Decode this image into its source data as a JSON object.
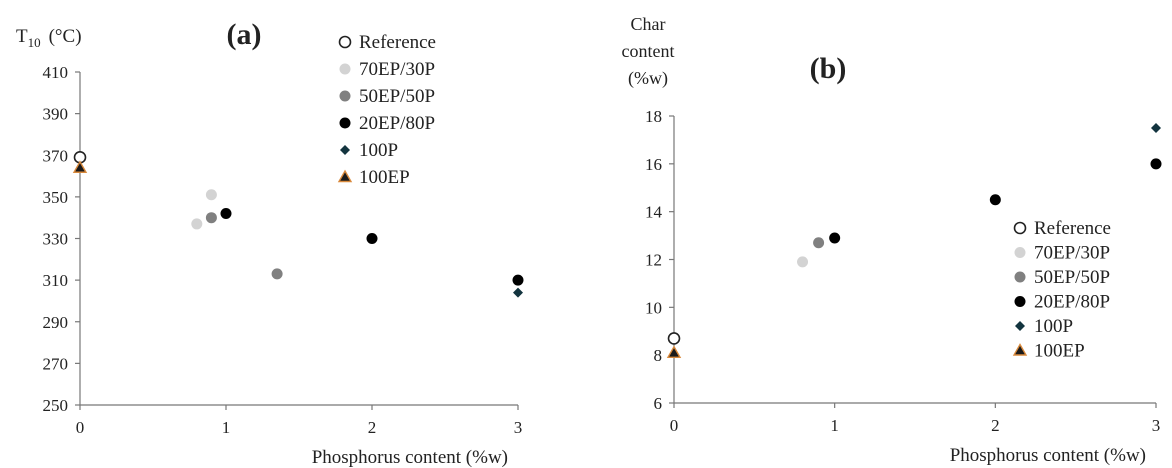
{
  "chart_data": [
    {
      "type": "scatter",
      "panel_label": "(a)",
      "ylabel_main": "T",
      "ylabel_sub": "10",
      "ylabel_unit": "(°C)",
      "xlabel": "Phosphorus content (%w)",
      "xlim": [
        0,
        3
      ],
      "ylim": [
        250,
        410
      ],
      "xticks": [
        0,
        1,
        2,
        3
      ],
      "yticks": [
        250,
        270,
        290,
        310,
        330,
        350,
        370,
        390,
        410
      ],
      "legend_position": "top-right",
      "series": [
        {
          "name": "Reference",
          "marker": "circle-open",
          "color": "#ffffff",
          "stroke": "#222222",
          "points": [
            [
              0,
              369
            ]
          ]
        },
        {
          "name": "70EP/30P",
          "marker": "circle",
          "color": "#d3d3d3",
          "points": [
            [
              0.8,
              337
            ],
            [
              0.9,
              351
            ]
          ]
        },
        {
          "name": "50EP/50P",
          "marker": "circle",
          "color": "#808080",
          "points": [
            [
              0.9,
              340
            ],
            [
              1.35,
              313
            ]
          ]
        },
        {
          "name": "20EP/80P",
          "marker": "circle",
          "color": "#000000",
          "points": [
            [
              1.0,
              342
            ],
            [
              2.0,
              330
            ],
            [
              3.0,
              310
            ]
          ]
        },
        {
          "name": "100P",
          "marker": "diamond",
          "color": "#13343f",
          "points": [
            [
              3.0,
              304
            ]
          ]
        },
        {
          "name": "100EP",
          "marker": "triangle",
          "color": "#1a1a1a",
          "stroke": "#d98a3d",
          "points": [
            [
              0,
              364
            ]
          ]
        }
      ]
    },
    {
      "type": "scatter",
      "panel_label": "(b)",
      "ylabel_lines": [
        "Char",
        "content",
        "(%w)"
      ],
      "xlabel": "Phosphorus content (%w)",
      "xlim": [
        0,
        3
      ],
      "ylim": [
        6,
        18
      ],
      "xticks": [
        0,
        1,
        2,
        3
      ],
      "yticks": [
        6,
        8,
        10,
        12,
        14,
        16,
        18
      ],
      "legend_position": "right",
      "series": [
        {
          "name": "Reference",
          "marker": "circle-open",
          "color": "#ffffff",
          "stroke": "#222222",
          "points": [
            [
              0,
              8.7
            ]
          ]
        },
        {
          "name": "70EP/30P",
          "marker": "circle",
          "color": "#d3d3d3",
          "points": [
            [
              0.8,
              11.9
            ]
          ]
        },
        {
          "name": "50EP/50P",
          "marker": "circle",
          "color": "#808080",
          "points": [
            [
              0.9,
              12.7
            ]
          ]
        },
        {
          "name": "20EP/80P",
          "marker": "circle",
          "color": "#000000",
          "points": [
            [
              1.0,
              12.9
            ],
            [
              2.0,
              14.5
            ],
            [
              3.0,
              16.0
            ]
          ]
        },
        {
          "name": "100P",
          "marker": "diamond",
          "color": "#13343f",
          "points": [
            [
              3.0,
              17.5
            ]
          ]
        },
        {
          "name": "100EP",
          "marker": "triangle",
          "color": "#1a1a1a",
          "stroke": "#d98a3d",
          "points": [
            [
              0,
              8.1
            ]
          ]
        }
      ]
    }
  ]
}
